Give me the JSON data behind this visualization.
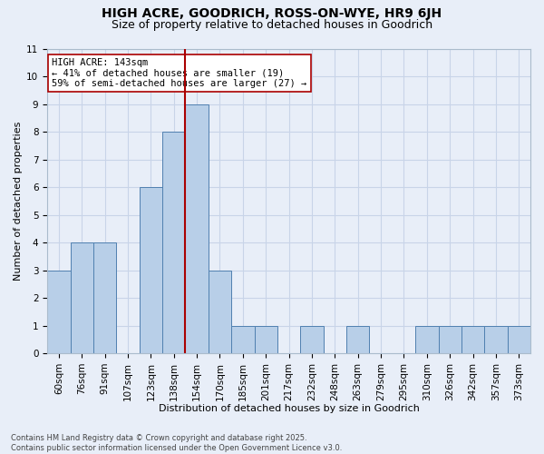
{
  "title": "HIGH ACRE, GOODRICH, ROSS-ON-WYE, HR9 6JH",
  "subtitle": "Size of property relative to detached houses in Goodrich",
  "xlabel": "Distribution of detached houses by size in Goodrich",
  "ylabel": "Number of detached properties",
  "footnote1": "Contains HM Land Registry data © Crown copyright and database right 2025.",
  "footnote2": "Contains public sector information licensed under the Open Government Licence v3.0.",
  "bins": [
    "60sqm",
    "76sqm",
    "91sqm",
    "107sqm",
    "123sqm",
    "138sqm",
    "154sqm",
    "170sqm",
    "185sqm",
    "201sqm",
    "217sqm",
    "232sqm",
    "248sqm",
    "263sqm",
    "279sqm",
    "295sqm",
    "310sqm",
    "326sqm",
    "342sqm",
    "357sqm",
    "373sqm"
  ],
  "values": [
    3,
    4,
    4,
    0,
    6,
    8,
    9,
    3,
    1,
    1,
    0,
    1,
    0,
    1,
    0,
    0,
    1,
    1,
    1,
    1,
    1
  ],
  "bar_color": "#b8cfe8",
  "bar_edge_color": "#5080b0",
  "red_line_after_index": 5,
  "highlight_color": "#aa0000",
  "annotation_line1": "HIGH ACRE: 143sqm",
  "annotation_line2": "← 41% of detached houses are smaller (19)",
  "annotation_line3": "59% of semi-detached houses are larger (27) →",
  "ylim": [
    0,
    11
  ],
  "yticks": [
    0,
    1,
    2,
    3,
    4,
    5,
    6,
    7,
    8,
    9,
    10,
    11
  ],
  "background_color": "#e8eef8",
  "grid_color": "#c8d4e8",
  "title_fontsize": 10,
  "subtitle_fontsize": 9,
  "axis_fontsize": 8,
  "tick_fontsize": 7.5,
  "annotation_fontsize": 7.5,
  "footnote_fontsize": 6
}
